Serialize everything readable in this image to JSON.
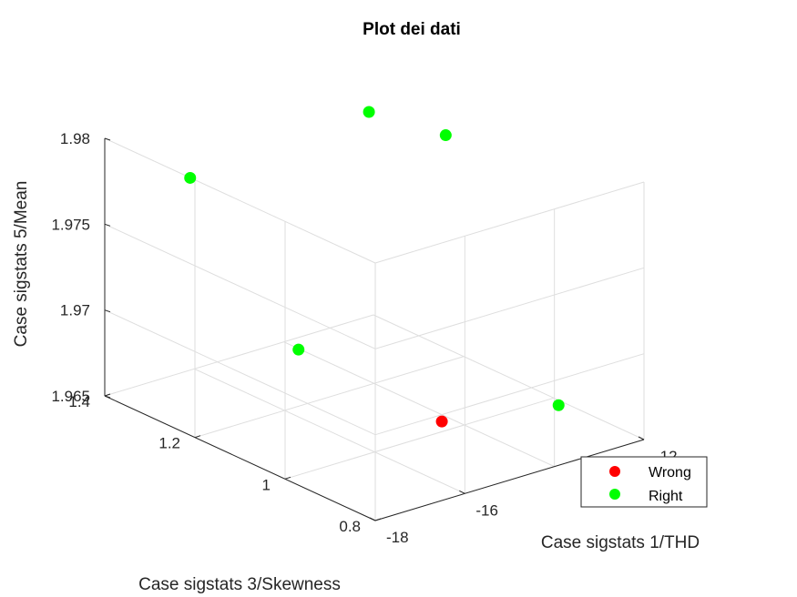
{
  "chart_data": {
    "type": "scatter",
    "title": "Plot dei dati",
    "xlabel": "Case sigstats 1/THD",
    "ylabel": "Case sigstats 3/Skewness",
    "zlabel": "Case sigstats 5/Mean",
    "xlim": [
      -18,
      -12
    ],
    "ylim": [
      0.8,
      1.4
    ],
    "zlim": [
      1.965,
      1.98
    ],
    "xticks": [
      "-18",
      "-16",
      "-12"
    ],
    "yticks": [
      "0.8",
      "1",
      "1.2",
      "1.4"
    ],
    "zticks": [
      "1.965",
      "1.97",
      "1.975",
      "1.98"
    ],
    "grid": true,
    "legend_position": "bottom-right",
    "series": [
      {
        "name": "Wrong",
        "color": "#ff0000",
        "points": [
          {
            "x": -14.5,
            "y": 1.0,
            "z": 1.9656
          }
        ]
      },
      {
        "name": "Right",
        "color": "#00ff00",
        "points": [
          {
            "x": -17.7,
            "y": 1.0,
            "z": 1.9723
          },
          {
            "x": -17.1,
            "y": 1.3,
            "z": 1.9782
          },
          {
            "x": -12.4,
            "y": 1.2,
            "z": 1.9782
          },
          {
            "x": -12.9,
            "y": 0.9,
            "z": 1.9665
          },
          {
            "x": -12.1,
            "y": 1.4,
            "z": 1.9769
          }
        ]
      }
    ]
  }
}
